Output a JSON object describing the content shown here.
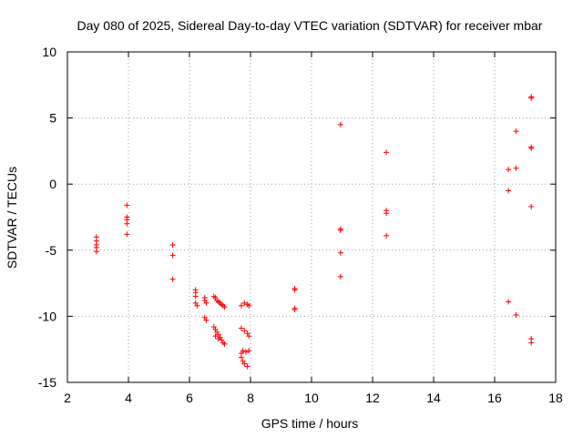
{
  "chart_data": {
    "type": "scatter",
    "title": "Day 080 of 2025, Sidereal Day-to-day VTEC variation (SDTVAR) for receiver mbar",
    "xlabel": "GPS time / hours",
    "ylabel": "SDTVAR / TECUs",
    "xlim": [
      2,
      18
    ],
    "ylim": [
      -15,
      10
    ],
    "xticks": [
      "2",
      "4",
      "6",
      "8",
      "10",
      "12",
      "14",
      "16",
      "18"
    ],
    "yticks": [
      "-15",
      "-10",
      "-5",
      "0",
      "5",
      "10"
    ],
    "grid": true,
    "marker": "plus",
    "color": "#ff0000",
    "series": [
      {
        "name": "SDTVAR",
        "points": [
          [
            2.95,
            -4.0
          ],
          [
            2.95,
            -4.3
          ],
          [
            2.95,
            -4.6
          ],
          [
            2.95,
            -4.8
          ],
          [
            2.95,
            -5.1
          ],
          [
            3.95,
            -1.6
          ],
          [
            3.95,
            -2.5
          ],
          [
            3.95,
            -2.7
          ],
          [
            3.95,
            -3.0
          ],
          [
            3.95,
            -3.8
          ],
          [
            5.45,
            -4.6
          ],
          [
            5.45,
            -5.4
          ],
          [
            5.45,
            -7.2
          ],
          [
            6.2,
            -8.0
          ],
          [
            6.2,
            -8.2
          ],
          [
            6.2,
            -8.5
          ],
          [
            6.2,
            -9.0
          ],
          [
            6.25,
            -9.2
          ],
          [
            6.5,
            -8.6
          ],
          [
            6.5,
            -8.8
          ],
          [
            6.55,
            -9.0
          ],
          [
            6.5,
            -10.1
          ],
          [
            6.55,
            -10.3
          ],
          [
            6.8,
            -8.5
          ],
          [
            6.85,
            -8.6
          ],
          [
            6.9,
            -8.8
          ],
          [
            6.95,
            -8.9
          ],
          [
            7.0,
            -9.0
          ],
          [
            7.05,
            -9.1
          ],
          [
            7.1,
            -9.2
          ],
          [
            7.15,
            -9.3
          ],
          [
            6.8,
            -10.8
          ],
          [
            6.85,
            -11.0
          ],
          [
            6.9,
            -11.2
          ],
          [
            6.95,
            -11.4
          ],
          [
            7.0,
            -11.6
          ],
          [
            7.05,
            -11.8
          ],
          [
            7.1,
            -12.0
          ],
          [
            7.15,
            -12.1
          ],
          [
            6.85,
            -11.5
          ],
          [
            6.95,
            -11.7
          ],
          [
            7.7,
            -9.2
          ],
          [
            7.8,
            -9.0
          ],
          [
            7.9,
            -9.1
          ],
          [
            7.95,
            -9.2
          ],
          [
            7.7,
            -10.9
          ],
          [
            7.8,
            -11.1
          ],
          [
            7.9,
            -11.3
          ],
          [
            7.95,
            -11.5
          ],
          [
            7.7,
            -12.8
          ],
          [
            7.75,
            -12.6
          ],
          [
            7.85,
            -12.7
          ],
          [
            7.95,
            -12.6
          ],
          [
            7.7,
            -13.1
          ],
          [
            7.75,
            -13.4
          ],
          [
            7.8,
            -13.6
          ],
          [
            7.9,
            -13.8
          ],
          [
            9.45,
            -7.9
          ],
          [
            9.45,
            -8.0
          ],
          [
            9.45,
            -9.4
          ],
          [
            9.45,
            -9.5
          ],
          [
            10.95,
            4.5
          ],
          [
            10.95,
            -3.4
          ],
          [
            10.95,
            -3.5
          ],
          [
            10.95,
            -5.2
          ],
          [
            10.95,
            -7.0
          ],
          [
            12.45,
            2.4
          ],
          [
            12.45,
            -2.0
          ],
          [
            12.45,
            -2.2
          ],
          [
            12.45,
            -3.9
          ],
          [
            16.45,
            1.1
          ],
          [
            16.45,
            -0.5
          ],
          [
            16.45,
            -8.9
          ],
          [
            16.7,
            4.0
          ],
          [
            16.7,
            1.2
          ],
          [
            16.7,
            -9.9
          ],
          [
            17.2,
            6.6
          ],
          [
            17.2,
            6.5
          ],
          [
            17.2,
            2.8
          ],
          [
            17.2,
            2.7
          ],
          [
            17.2,
            -1.7
          ],
          [
            17.2,
            -11.7
          ],
          [
            17.2,
            -12.0
          ]
        ]
      }
    ]
  }
}
